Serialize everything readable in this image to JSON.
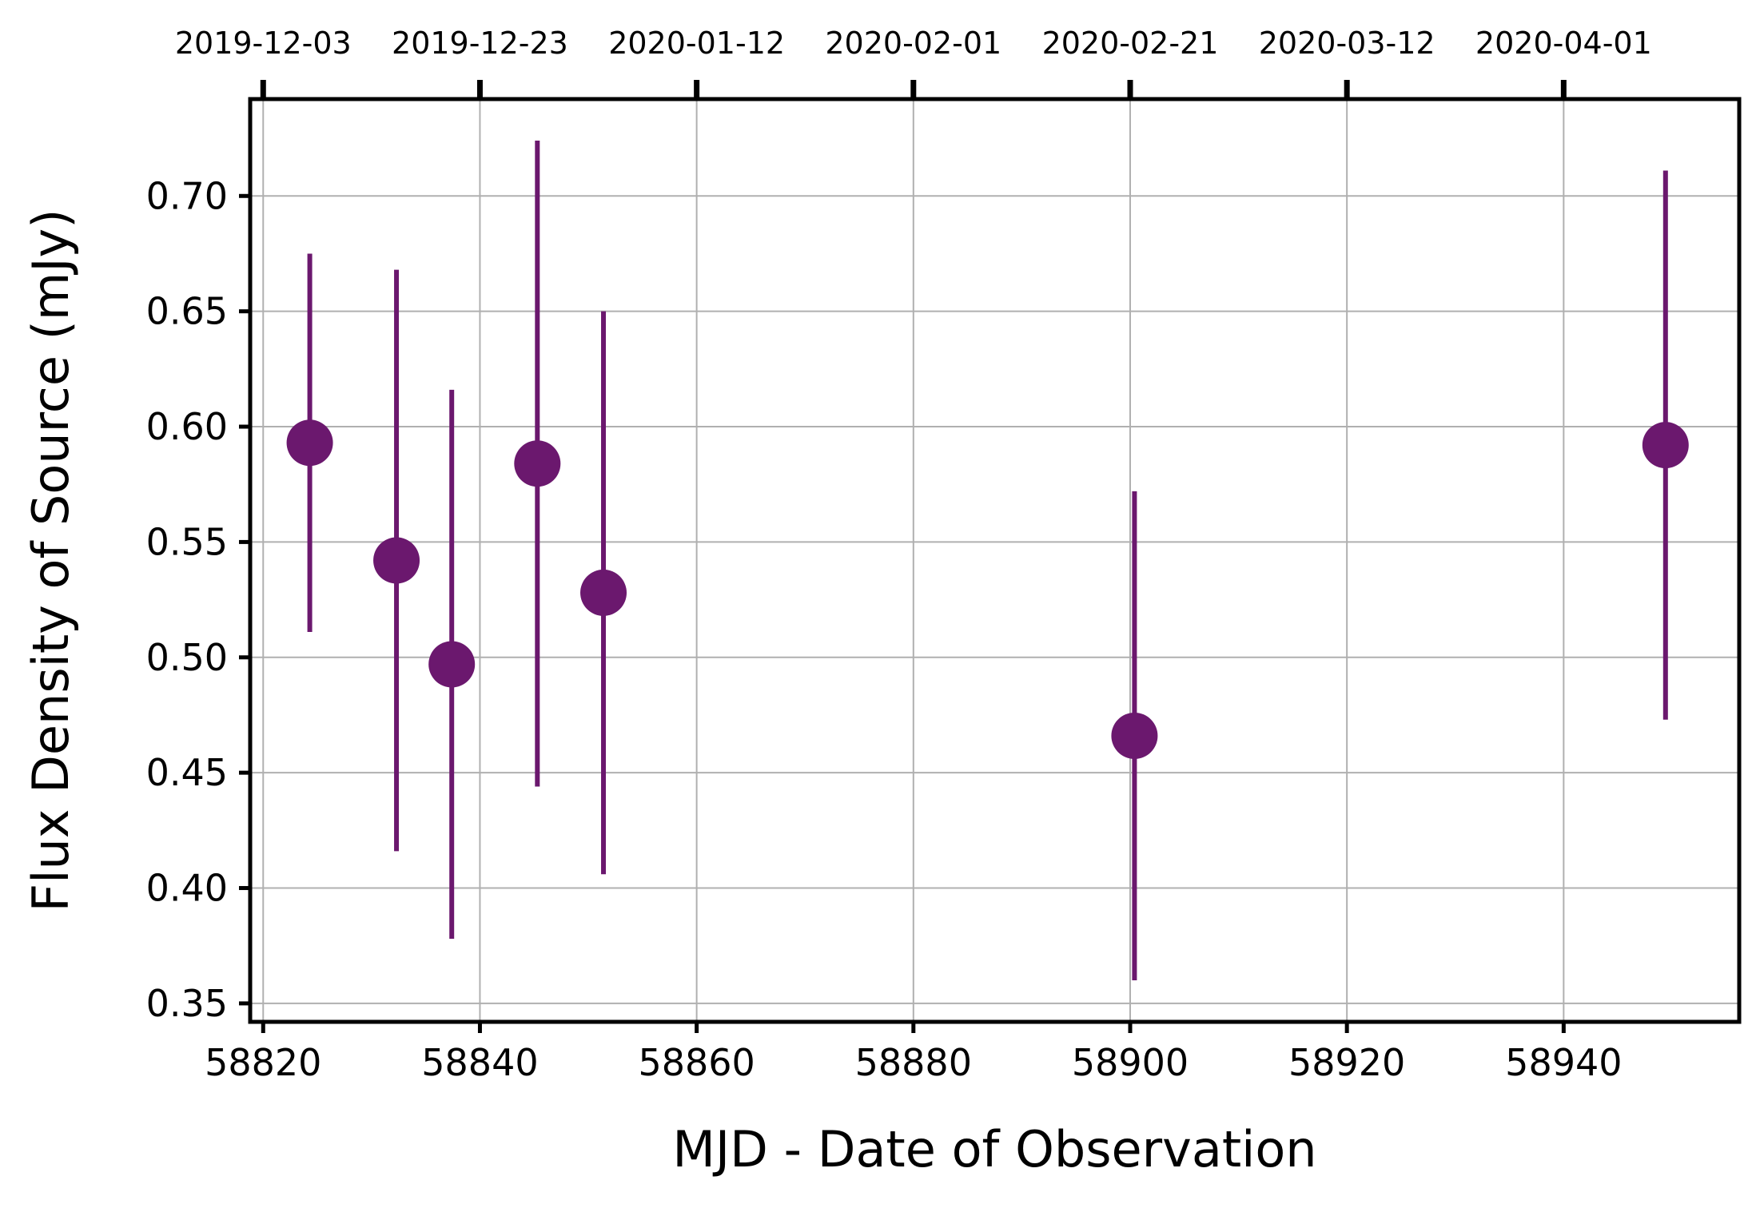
{
  "chart_data": {
    "type": "scatter",
    "title": "",
    "xlabel": "MJD - Date of Observation",
    "ylabel": "Flux Density of Source (mJy)",
    "xlim": [
      58818.8,
      58956.2
    ],
    "ylim": [
      0.342,
      0.742
    ],
    "xticks": [
      {
        "value": 58820,
        "label": "58820"
      },
      {
        "value": 58840,
        "label": "58840"
      },
      {
        "value": 58860,
        "label": "58860"
      },
      {
        "value": 58880,
        "label": "58880"
      },
      {
        "value": 58900,
        "label": "58900"
      },
      {
        "value": 58920,
        "label": "58920"
      },
      {
        "value": 58940,
        "label": "58940"
      }
    ],
    "yticks": [
      {
        "value": 0.35,
        "label": "0.35"
      },
      {
        "value": 0.4,
        "label": "0.40"
      },
      {
        "value": 0.45,
        "label": "0.45"
      },
      {
        "value": 0.5,
        "label": "0.50"
      },
      {
        "value": 0.55,
        "label": "0.55"
      },
      {
        "value": 0.6,
        "label": "0.60"
      },
      {
        "value": 0.65,
        "label": "0.65"
      },
      {
        "value": 0.7,
        "label": "0.70"
      }
    ],
    "top_axis": {
      "ticks": [
        {
          "value": 58820,
          "label": "2019-12-03"
        },
        {
          "value": 58840,
          "label": "2019-12-23"
        },
        {
          "value": 58860,
          "label": "2020-01-12"
        },
        {
          "value": 58880,
          "label": "2020-02-01"
        },
        {
          "value": 58900,
          "label": "2020-02-21"
        },
        {
          "value": 58920,
          "label": "2020-03-12"
        },
        {
          "value": 58940,
          "label": "2020-04-01"
        }
      ]
    },
    "grid": true,
    "series": [
      {
        "color": "#6b186e",
        "points": [
          {
            "x": 58824.3,
            "y": 0.593,
            "yerr": 0.082
          },
          {
            "x": 58832.3,
            "y": 0.542,
            "yerr": 0.126
          },
          {
            "x": 58837.4,
            "y": 0.497,
            "yerr": 0.119
          },
          {
            "x": 58845.3,
            "y": 0.584,
            "yerr": 0.14
          },
          {
            "x": 58851.4,
            "y": 0.528,
            "yerr": 0.122
          },
          {
            "x": 58900.4,
            "y": 0.466,
            "yerr": 0.106
          },
          {
            "x": 58949.4,
            "y": 0.592,
            "yerr": 0.119
          }
        ]
      }
    ]
  }
}
